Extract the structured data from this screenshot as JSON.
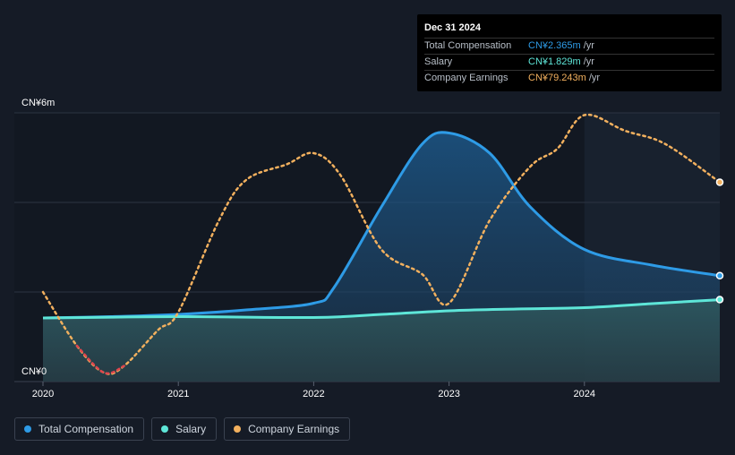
{
  "tooltip": {
    "date": "Dec 31 2024",
    "rows": [
      {
        "label": "Total Compensation",
        "value": "CN¥2.365m",
        "unit": "/yr",
        "color": "#2e9be6"
      },
      {
        "label": "Salary",
        "value": "CN¥1.829m",
        "unit": "/yr",
        "color": "#5ee6d8"
      },
      {
        "label": "Company Earnings",
        "value": "CN¥79.243m",
        "unit": "/yr",
        "color": "#f2b05e"
      }
    ]
  },
  "legend": [
    {
      "label": "Total Compensation",
      "color": "#2e9be6"
    },
    {
      "label": "Salary",
      "color": "#5ee6d8"
    },
    {
      "label": "Company Earnings",
      "color": "#f2b05e"
    }
  ],
  "chart_data": {
    "type": "area",
    "title": "",
    "xlabel": "",
    "ylabel": "",
    "x_ticks": [
      2020,
      2021,
      2022,
      2023,
      2024
    ],
    "x_tick_labels": [
      "2020",
      "2021",
      "2022",
      "2023",
      "2024"
    ],
    "xlim": [
      2020,
      2025
    ],
    "y_tick_labels": [
      "CN¥6m",
      "CN¥0"
    ],
    "ylim": [
      0,
      6
    ],
    "highlight_from": 2024,
    "series": [
      {
        "name": "Total Compensation",
        "color": "#2e9be6",
        "x": [
          2020.0,
          2020.5,
          2021.0,
          2021.5,
          2022.0,
          2022.15,
          2022.5,
          2022.8,
          2023.0,
          2023.3,
          2023.6,
          2024.0,
          2024.5,
          2025.0
        ],
        "values": [
          1.42,
          1.45,
          1.5,
          1.6,
          1.75,
          2.1,
          3.9,
          5.3,
          5.55,
          5.1,
          3.9,
          2.95,
          2.6,
          2.365
        ]
      },
      {
        "name": "Salary",
        "color": "#5ee6d8",
        "x": [
          2020.0,
          2021.0,
          2022.0,
          2022.5,
          2023.0,
          2023.5,
          2024.0,
          2024.5,
          2025.0
        ],
        "values": [
          1.42,
          1.45,
          1.43,
          1.5,
          1.58,
          1.62,
          1.65,
          1.74,
          1.829
        ]
      },
      {
        "name": "Company Earnings",
        "color": "#f2b05e",
        "negative_color": "#e0464d",
        "axis_label": "CN¥79.243m",
        "x": [
          2020.0,
          2020.25,
          2020.45,
          2020.6,
          2020.85,
          2021.0,
          2021.3,
          2021.5,
          2021.8,
          2022.0,
          2022.2,
          2022.5,
          2022.8,
          2023.0,
          2023.3,
          2023.6,
          2023.8,
          2024.0,
          2024.3,
          2024.6,
          2025.0
        ],
        "values": [
          2.0,
          0.8,
          0.2,
          0.35,
          1.15,
          1.55,
          3.6,
          4.5,
          4.85,
          5.1,
          4.6,
          2.95,
          2.4,
          1.75,
          3.6,
          4.8,
          5.2,
          5.95,
          5.6,
          5.3,
          4.45
        ]
      }
    ]
  }
}
